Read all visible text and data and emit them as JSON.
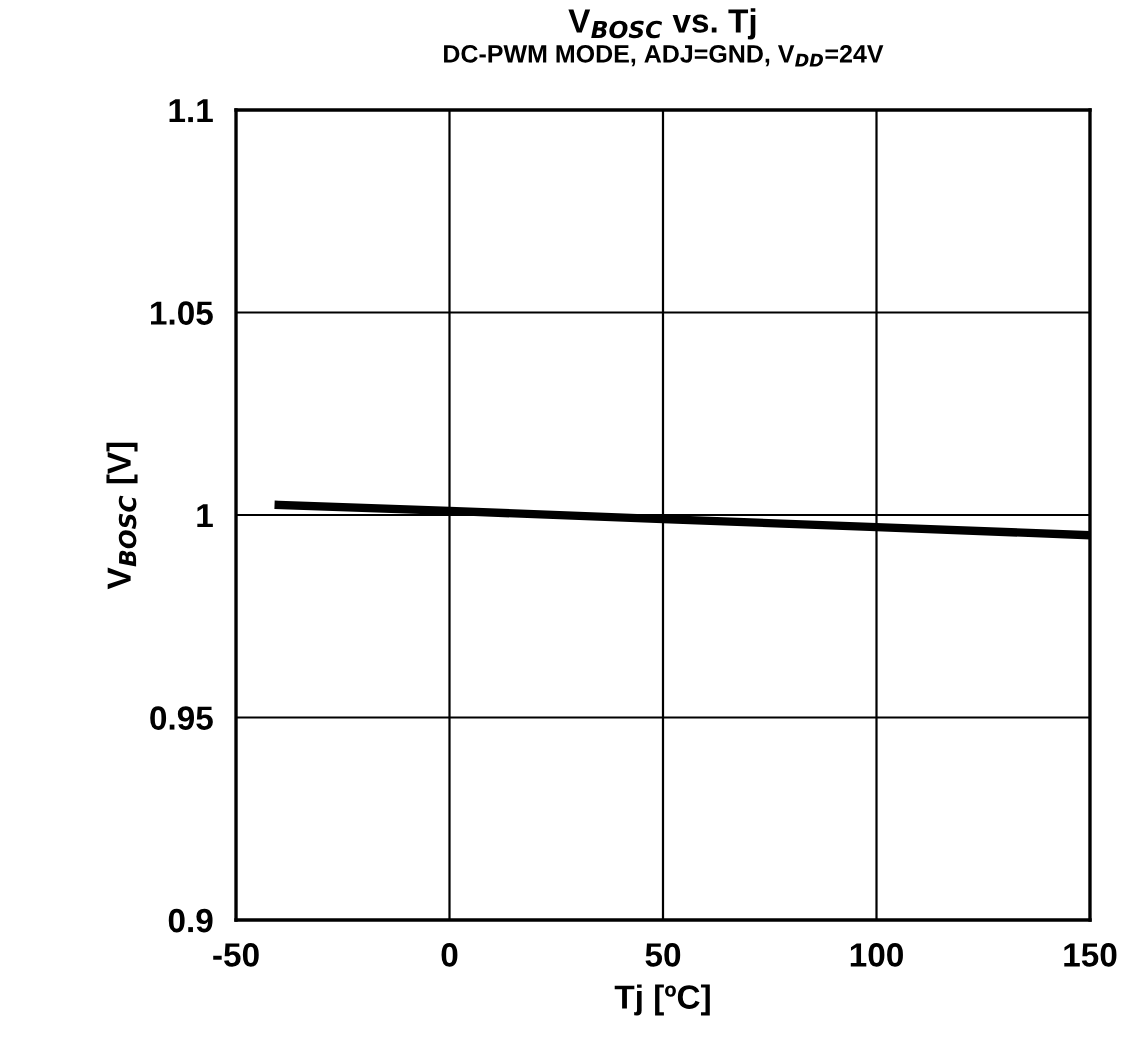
{
  "chart_data": {
    "type": "line",
    "title": "V$_{BOSC}$ vs. Tj",
    "subtitle": "DC-PWM MODE, ADJ=GND, V$_{DD}$=24V",
    "xlabel": "Tj [ºC]",
    "ylabel": "V$_{BOSC}$ [V]",
    "series": [
      {
        "color": "#000000",
        "x": [
          -40,
          0,
          50,
          100,
          150
        ],
        "values": [
          1.0025,
          1.001,
          0.999,
          0.997,
          0.995
        ]
      }
    ],
    "xlim": [
      -50,
      150
    ],
    "xticks": [
      -50,
      0,
      50,
      100,
      150
    ],
    "ylim": [
      0.9,
      1.1
    ],
    "yticks": [
      0.9,
      0.95,
      1,
      1.05,
      1.1
    ],
    "grid": true,
    "marker": "none",
    "line_style": "solid",
    "legend": false
  }
}
